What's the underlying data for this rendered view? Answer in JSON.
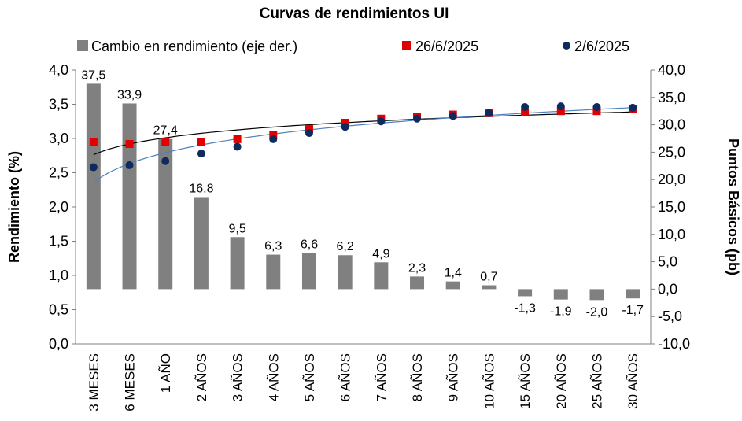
{
  "chart_data": {
    "type": "bar",
    "title": "Curvas de rendimientos UI",
    "ylabel": "Rendimiento (%)",
    "y2label": "Puntos Básicos (pb)",
    "ylim": [
      0,
      4
    ],
    "y2lim": [
      -10,
      40
    ],
    "yticks": [
      "0,0",
      "0,5",
      "1,0",
      "1,5",
      "2,0",
      "2,5",
      "3,0",
      "3,5",
      "4,0"
    ],
    "y2ticks": [
      "-10,0",
      "-5,0",
      "0,0",
      "5,0",
      "10,0",
      "15,0",
      "20,0",
      "25,0",
      "30,0",
      "35,0",
      "40,0"
    ],
    "categories": [
      "3 MESES",
      "6 MESES",
      "1 AÑO",
      "2 AÑOS",
      "3 AÑOS",
      "4 AÑOS",
      "5 AÑOS",
      "6 AÑOS",
      "7 AÑOS",
      "8 AÑOS",
      "9 AÑOS",
      "10 AÑOS",
      "15 AÑOS",
      "20 AÑOS",
      "25 AÑOS",
      "30 AÑOS"
    ],
    "legend_position": "top",
    "series": [
      {
        "name": "Cambio en rendimiento (eje der.)",
        "kind": "bar",
        "axis": "right",
        "color": "#808080",
        "values": [
          37.5,
          33.9,
          27.4,
          16.8,
          9.5,
          6.3,
          6.6,
          6.2,
          4.9,
          2.3,
          1.4,
          0.7,
          -1.3,
          -1.9,
          -2.0,
          -1.7
        ],
        "labels": [
          "37,5",
          "33,9",
          "27,4",
          "16,8",
          "9,5",
          "6,3",
          "6,6",
          "6,2",
          "4,9",
          "2,3",
          "1,4",
          "0,7",
          "-1,3",
          "-1,9",
          "-2,0",
          "-1,7"
        ]
      },
      {
        "name": "26/6/2025",
        "kind": "marker",
        "marker": "square",
        "axis": "left",
        "color": "#e00000",
        "values": [
          2.95,
          2.92,
          2.95,
          2.95,
          2.99,
          3.05,
          3.14,
          3.23,
          3.29,
          3.32,
          3.35,
          3.37,
          3.38,
          3.4,
          3.4,
          3.43
        ]
      },
      {
        "name": "2/6/2025",
        "kind": "marker",
        "marker": "circle",
        "axis": "left",
        "color": "#0d2b5e",
        "values": [
          2.58,
          2.61,
          2.67,
          2.78,
          2.88,
          2.99,
          3.08,
          3.17,
          3.25,
          3.29,
          3.33,
          3.37,
          3.46,
          3.47,
          3.46,
          3.45
        ]
      }
    ],
    "trendlines": [
      {
        "for": "26/6/2025",
        "color": "#000000",
        "type": "log"
      },
      {
        "for": "2/6/2025",
        "color": "#4f81bd",
        "type": "log"
      }
    ]
  }
}
